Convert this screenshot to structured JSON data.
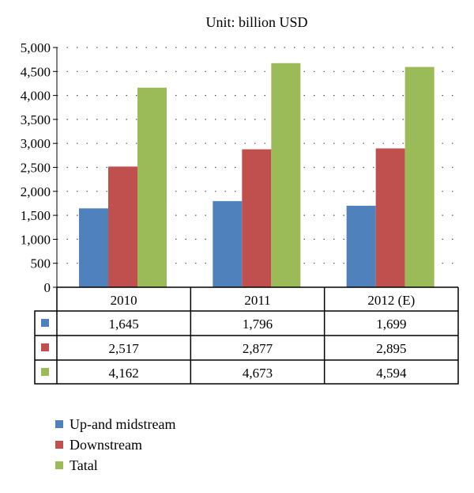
{
  "chart_data": {
    "type": "bar",
    "subtitle": "Unit: billion USD",
    "categories": [
      "2010",
      "2011",
      "2012 (E)"
    ],
    "series": [
      {
        "name": "Up-and midstream",
        "values": [
          1645,
          1796,
          1699
        ],
        "labels": [
          "1,645",
          "1,796",
          "1,699"
        ],
        "color": "#4F81BD"
      },
      {
        "name": "Downstream",
        "values": [
          2517,
          2877,
          2895
        ],
        "labels": [
          "2,517",
          "2,877",
          "2,895"
        ],
        "color": "#C0504D"
      },
      {
        "name": "Tatal",
        "values": [
          4162,
          4673,
          4594
        ],
        "labels": [
          "4,162",
          "4,673",
          "4,594"
        ],
        "color": "#9BBB59"
      }
    ],
    "ylim": [
      0,
      5000
    ],
    "yticks": [
      0,
      500,
      1000,
      1500,
      2000,
      2500,
      3000,
      3500,
      4000,
      4500,
      5000
    ],
    "ytick_labels": [
      "0",
      "500",
      "1,000",
      "1,500",
      "2,000",
      "2,500",
      "3,000",
      "3,500",
      "4,000",
      "4,500",
      "5,000"
    ],
    "grid": "dotted horizontal",
    "data_table": true,
    "legend_position": "bottom-left"
  }
}
